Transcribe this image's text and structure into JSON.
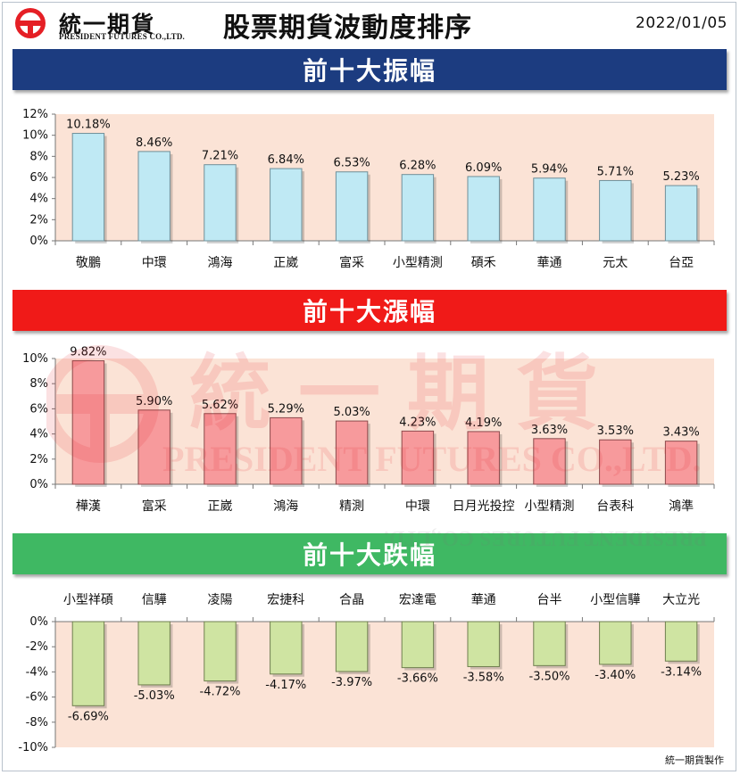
{
  "header": {
    "brand_cn": "統一期貨",
    "brand_en": "PRESIDENT FUTURES CO.,LTD.",
    "title": "股票期貨波動度排序",
    "date": "2022/01/05"
  },
  "watermark": {
    "cn": "統一期貨",
    "en": "PRESIDENT FUTURES CO.,LTD."
  },
  "footer": "統一期貨製作",
  "colors": {
    "brand_red": "#e51f25",
    "plot_bg": "#fbe3d6"
  },
  "chart_data": [
    {
      "type": "bar",
      "title": "前十大振幅",
      "categories": [
        "敬鵬",
        "中環",
        "鴻海",
        "正崴",
        "富采",
        "小型精測",
        "碩禾",
        "華通",
        "元太",
        "台亞"
      ],
      "values": [
        10.18,
        8.46,
        7.21,
        6.84,
        6.53,
        6.28,
        6.09,
        5.94,
        5.71,
        5.23
      ],
      "data_labels": [
        "10.18%",
        "8.46%",
        "7.21%",
        "6.84%",
        "6.53%",
        "6.28%",
        "6.09%",
        "5.94%",
        "5.71%",
        "5.23%"
      ],
      "ylim": [
        0,
        12
      ],
      "yticks": [
        0,
        2,
        4,
        6,
        8,
        10,
        12
      ],
      "ytick_labels": [
        "0%",
        "2%",
        "4%",
        "6%",
        "8%",
        "10%",
        "12%"
      ],
      "bar_color": "#bfe9f4",
      "bar_edge": "#6f8f99",
      "banner_color": "#1c3c80"
    },
    {
      "type": "bar",
      "title": "前十大漲幅",
      "categories": [
        "樺漢",
        "富采",
        "正崴",
        "鴻海",
        "精測",
        "中環",
        "日月光投控",
        "小型精測",
        "台表科",
        "鴻準"
      ],
      "values": [
        9.82,
        5.9,
        5.62,
        5.29,
        5.03,
        4.23,
        4.19,
        3.63,
        3.53,
        3.43
      ],
      "data_labels": [
        "9.82%",
        "5.90%",
        "5.62%",
        "5.29%",
        "5.03%",
        "4.23%",
        "4.19%",
        "3.63%",
        "3.53%",
        "3.43%"
      ],
      "ylim": [
        0,
        10
      ],
      "yticks": [
        0,
        2,
        4,
        6,
        8,
        10
      ],
      "ytick_labels": [
        "0%",
        "2%",
        "4%",
        "6%",
        "8%",
        "10%"
      ],
      "bar_color": "#f79a9c",
      "bar_edge": "#8c4a4c",
      "banner_color": "#f01a18"
    },
    {
      "type": "bar",
      "title": "前十大跌幅",
      "categories": [
        "小型祥碩",
        "信驊",
        "凌陽",
        "宏捷科",
        "合晶",
        "宏達電",
        "華通",
        "台半",
        "小型信驊",
        "大立光"
      ],
      "values": [
        -6.69,
        -5.03,
        -4.72,
        -4.17,
        -3.97,
        -3.66,
        -3.58,
        -3.5,
        -3.4,
        -3.14
      ],
      "data_labels": [
        "-6.69%",
        "-5.03%",
        "-4.72%",
        "-4.17%",
        "-3.97%",
        "-3.66%",
        "-3.58%",
        "-3.50%",
        "-3.40%",
        "-3.14%"
      ],
      "ylim": [
        -10,
        0
      ],
      "yticks": [
        0,
        -2,
        -4,
        -6,
        -8,
        -10
      ],
      "ytick_labels": [
        "0%",
        "-2%",
        "-4%",
        "-6%",
        "-8%",
        "-10%"
      ],
      "bar_color": "#cfe4a2",
      "bar_edge": "#6f7f50",
      "banner_color": "#3fb863"
    }
  ]
}
